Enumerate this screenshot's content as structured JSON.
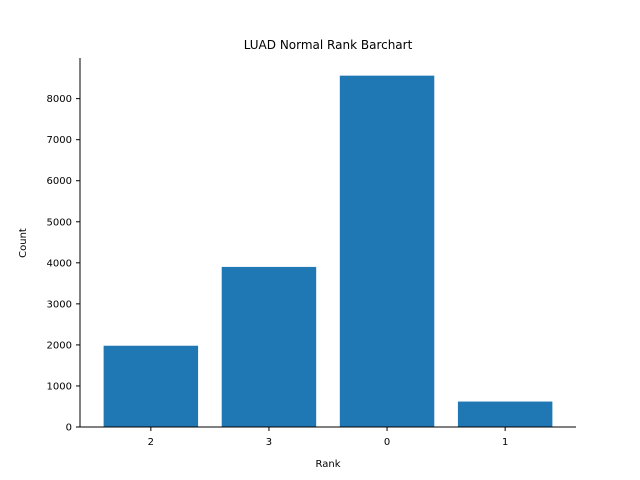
{
  "chart_data": {
    "type": "bar",
    "title": "LUAD Normal Rank Barchart",
    "xlabel": "Rank",
    "ylabel": "Count",
    "categories": [
      "2",
      "3",
      "0",
      "1"
    ],
    "values": [
      1980,
      3900,
      8560,
      620
    ],
    "ylim": [
      0,
      8990
    ],
    "yticks": [
      0,
      1000,
      2000,
      3000,
      4000,
      5000,
      6000,
      7000,
      8000
    ],
    "bar_color": "#1f77b4",
    "grid": false,
    "legend": "none"
  }
}
